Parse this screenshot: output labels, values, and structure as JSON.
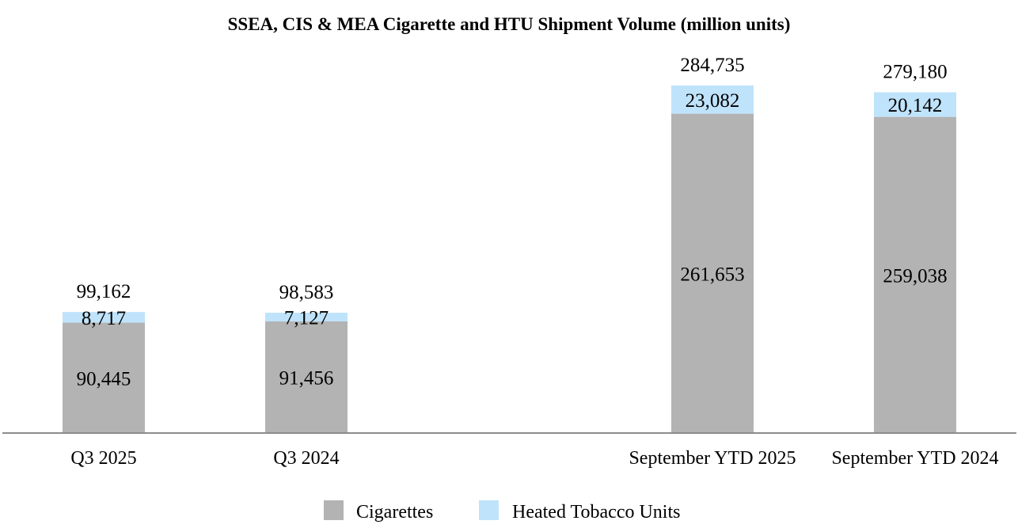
{
  "chart_data": {
    "type": "bar",
    "stacked": true,
    "title": "SSEA, CIS & MEA Cigarette and HTU Shipment Volume (million units)",
    "categories": [
      "Q3 2025",
      "Q3 2024",
      "September YTD 2025",
      "September YTD 2024"
    ],
    "series": [
      {
        "name": "Cigarettes",
        "color": "#b3b3b3",
        "values": [
          90445,
          91456,
          261653,
          259038
        ],
        "labels": [
          "90,445",
          "91,456",
          "261,653",
          "259,038"
        ]
      },
      {
        "name": "Heated Tobacco Units",
        "color": "#bfe3fb",
        "values": [
          8717,
          7127,
          23082,
          20142
        ],
        "labels": [
          "8,717",
          "7,127",
          "23,082",
          "20,142"
        ]
      }
    ],
    "totals": [
      99162,
      98583,
      284735,
      279180
    ],
    "total_labels": [
      "99,162",
      "98,583",
      "284,735",
      "279,180"
    ],
    "ylim": [
      0,
      300000
    ],
    "grid": false,
    "legend_position": "bottom"
  }
}
